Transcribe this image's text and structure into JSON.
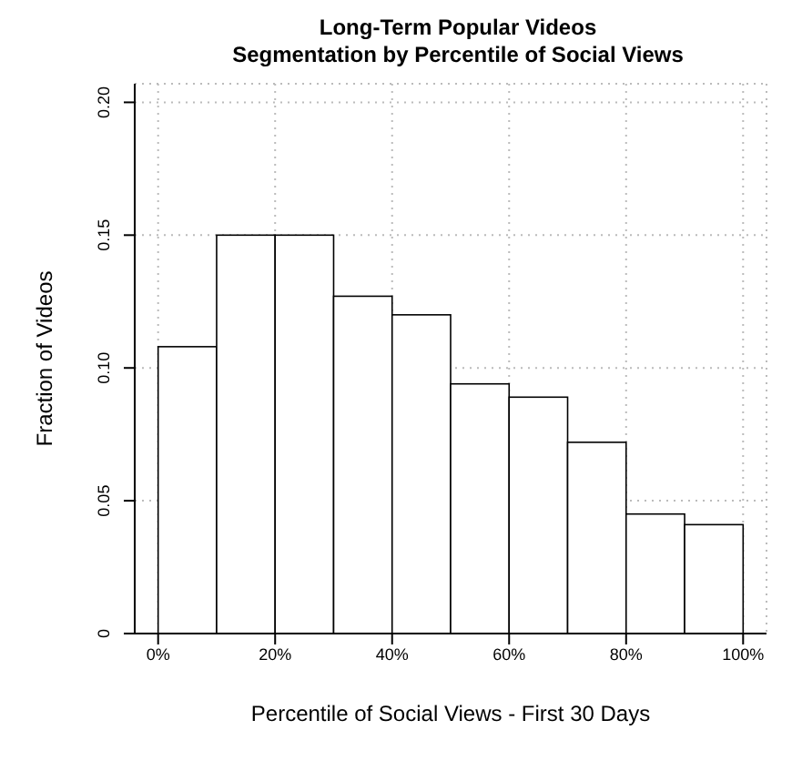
{
  "chart_data": {
    "type": "histogram",
    "title": "Long-Term Popular Videos",
    "subtitle": "Segmentation by Percentile of Social Views",
    "xlabel": "Percentile of Social Views - First 30 Days",
    "ylabel": "Fraction of Videos",
    "bins": [
      0,
      0.1,
      0.2,
      0.3,
      0.4,
      0.5,
      0.6,
      0.7,
      0.8,
      0.9,
      1.0
    ],
    "values": [
      0.108,
      0.15,
      0.15,
      0.127,
      0.12,
      0.094,
      0.089,
      0.072,
      0.045,
      0.041
    ],
    "color": "#ffffff",
    "xlim": [
      -0.04,
      1.04
    ],
    "xticks": [
      {
        "value": 0,
        "label": "0%"
      },
      {
        "value": 0.2,
        "label": "20%"
      },
      {
        "value": 0.4,
        "label": "40%"
      },
      {
        "value": 0.6,
        "label": "60%"
      },
      {
        "value": 0.8,
        "label": "80%"
      },
      {
        "value": 1.0,
        "label": "100%"
      }
    ],
    "ylim": [
      0,
      0.207
    ],
    "yticks": [
      0,
      0.05,
      {
        "value": 0.1,
        "label": "0.10"
      },
      0.15,
      {
        "value": 0.2,
        "label": "0.20"
      }
    ],
    "grid": true
  }
}
